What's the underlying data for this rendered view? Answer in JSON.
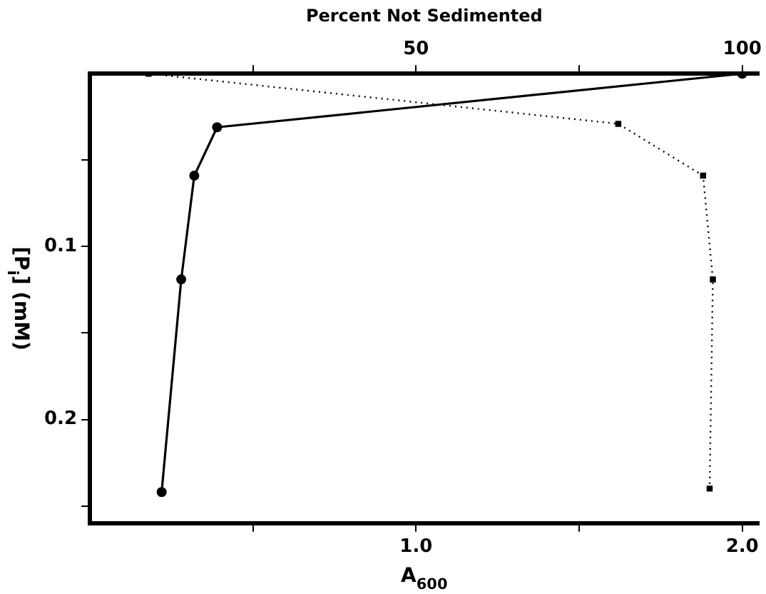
{
  "chart_data": {
    "type": "line",
    "xlabel": "A$_{600}$",
    "x2label": "Percent Not Sedimented",
    "ylabel": "[P$_{i}$] (mM)",
    "xlim": [
      0,
      2.05
    ],
    "xticks": [
      {
        "value": 0.5,
        "label": null
      },
      {
        "value": 1.0,
        "label": "1.0"
      },
      {
        "value": 1.5,
        "label": null
      },
      {
        "value": 2.0,
        "label": "2.0"
      }
    ],
    "x2lim": [
      0,
      102.5
    ],
    "x2ticks": [
      {
        "value": 25,
        "label": null
      },
      50,
      {
        "value": 75,
        "label": null
      },
      100
    ],
    "ylim": [
      0.26,
      0
    ],
    "yticks": [
      {
        "value": 0.05,
        "label": null
      },
      0.1,
      {
        "value": 0.15,
        "label": null
      },
      0.2,
      {
        "value": 0.25,
        "label": null
      }
    ],
    "grid": false,
    "legend": false,
    "series": [
      {
        "color": "#000000",
        "marker": "circle",
        "line_style": "solid",
        "x": [
          2.0,
          0.39,
          0.32,
          0.28,
          0.22
        ],
        "values": [
          0,
          0.031,
          0.059,
          0.119,
          0.242
        ]
      },
      {
        "color": "#000000",
        "marker": "square",
        "line_style": "dotted",
        "axis": "x2",
        "x": [
          9,
          81,
          94,
          95.5,
          95
        ],
        "values": [
          0,
          0.029,
          0.059,
          0.119,
          0.24
        ]
      }
    ]
  }
}
